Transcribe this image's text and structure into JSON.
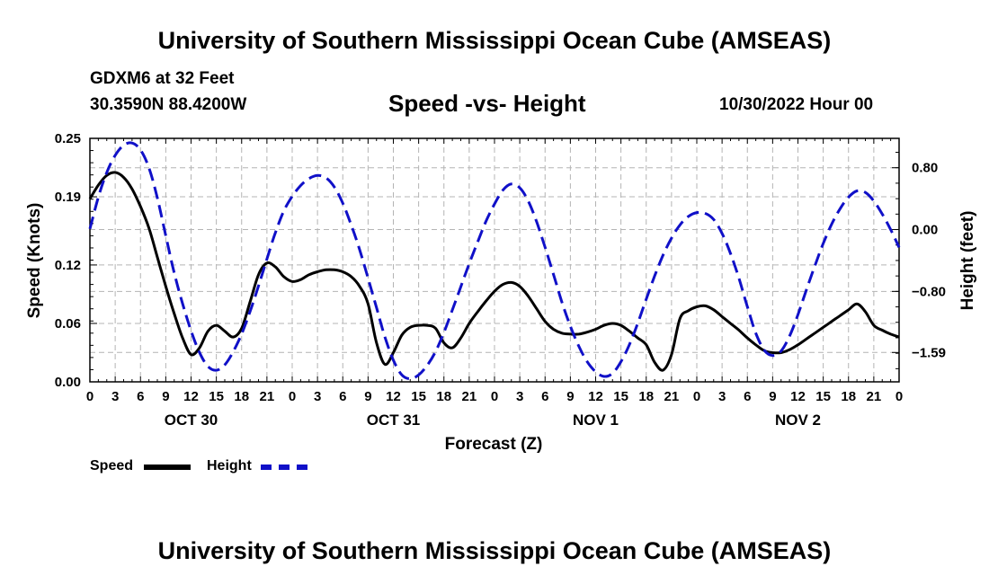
{
  "header": {
    "title_top": "University of Southern Mississippi Ocean Cube (AMSEAS)",
    "station": "GDXM6 at 32 Feet",
    "coords": "30.3590N  88.4200W",
    "chart_title": "Speed -vs- Height",
    "run_time": "10/30/2022 Hour 00"
  },
  "footer": {
    "title_bottom": "University of Southern Mississippi Ocean Cube (AMSEAS)"
  },
  "legend": {
    "speed_label": "Speed",
    "height_label": "Height"
  },
  "colors": {
    "speed": "#000000",
    "height": "#1010c8",
    "grid": "#b4b4b4"
  },
  "chart_data": {
    "type": "line",
    "title": "Speed -vs- Height",
    "xlabel": "Forecast (Z)",
    "ylabel": "Speed (Knots)",
    "y2label": "Height (feet)",
    "xlim": [
      0,
      96
    ],
    "ylim": [
      0,
      0.25
    ],
    "y2lim": [
      -1.97,
      1.18
    ],
    "x_ticks": [
      0,
      3,
      6,
      9,
      12,
      15,
      18,
      21,
      24,
      27,
      30,
      33,
      36,
      39,
      42,
      45,
      48,
      51,
      54,
      57,
      60,
      63,
      66,
      69,
      72,
      75,
      78,
      81,
      84,
      87,
      90,
      93,
      96
    ],
    "x_tick_labels": [
      "0",
      "3",
      "6",
      "9",
      "12",
      "15",
      "18",
      "21",
      "0",
      "3",
      "6",
      "9",
      "12",
      "15",
      "18",
      "21",
      "0",
      "3",
      "6",
      "9",
      "12",
      "15",
      "18",
      "21",
      "0",
      "3",
      "6",
      "9",
      "12",
      "15",
      "18",
      "21",
      "0"
    ],
    "day_labels": [
      {
        "x": 12,
        "label": "OCT 30"
      },
      {
        "x": 36,
        "label": "OCT 31"
      },
      {
        "x": 60,
        "label": "NOV 1"
      },
      {
        "x": 84,
        "label": "NOV 2"
      }
    ],
    "y_ticks": [
      0.0,
      0.06,
      0.12,
      0.19,
      0.25
    ],
    "y_tick_labels": [
      "0.00",
      "0.06",
      "0.12",
      "0.19",
      "0.25"
    ],
    "y2_ticks": [
      0.8,
      0.0,
      -0.8,
      -1.59
    ],
    "y2_tick_labels": [
      "0.80",
      "0.00",
      "−0.80",
      "−1.59"
    ],
    "grid": true,
    "series": [
      {
        "name": "Speed",
        "axis": "left",
        "style": "solid",
        "x": [
          0,
          1,
          2,
          3,
          4,
          5,
          6,
          7,
          8,
          9,
          10,
          11,
          12,
          13,
          14,
          15,
          16,
          17,
          18,
          19,
          20,
          21,
          22,
          23,
          24,
          25,
          26,
          27,
          28,
          29,
          30,
          31,
          32,
          33,
          34,
          35,
          36,
          37,
          38,
          39,
          40,
          41,
          42,
          43,
          44,
          45,
          46,
          47,
          48,
          49,
          50,
          51,
          52,
          53,
          54,
          55,
          56,
          57,
          58,
          59,
          60,
          61,
          62,
          63,
          64,
          65,
          66,
          67,
          68,
          69,
          70,
          71,
          72,
          73,
          74,
          75,
          76,
          77,
          78,
          79,
          80,
          81,
          82,
          83,
          84,
          85,
          86,
          87,
          88,
          89,
          90,
          91,
          92,
          93,
          94,
          95,
          96
        ],
        "values": [
          0.188,
          0.202,
          0.212,
          0.215,
          0.21,
          0.198,
          0.18,
          0.158,
          0.128,
          0.098,
          0.07,
          0.045,
          0.028,
          0.035,
          0.052,
          0.058,
          0.052,
          0.046,
          0.055,
          0.082,
          0.11,
          0.122,
          0.118,
          0.108,
          0.103,
          0.105,
          0.11,
          0.113,
          0.115,
          0.115,
          0.113,
          0.108,
          0.098,
          0.08,
          0.04,
          0.018,
          0.03,
          0.048,
          0.056,
          0.058,
          0.058,
          0.055,
          0.04,
          0.035,
          0.045,
          0.06,
          0.072,
          0.083,
          0.093,
          0.1,
          0.102,
          0.098,
          0.088,
          0.075,
          0.062,
          0.054,
          0.05,
          0.049,
          0.049,
          0.051,
          0.054,
          0.058,
          0.06,
          0.058,
          0.052,
          0.045,
          0.038,
          0.02,
          0.012,
          0.028,
          0.065,
          0.073,
          0.077,
          0.078,
          0.074,
          0.067,
          0.06,
          0.053,
          0.045,
          0.038,
          0.032,
          0.03,
          0.03,
          0.033,
          0.038,
          0.044,
          0.05,
          0.056,
          0.062,
          0.068,
          0.074,
          0.08,
          0.072,
          0.058,
          0.053,
          0.049,
          0.046
        ]
      },
      {
        "name": "Height",
        "axis": "right",
        "style": "dashed",
        "x": [
          0,
          1,
          2,
          3,
          4,
          5,
          6,
          7,
          8,
          9,
          10,
          11,
          12,
          13,
          14,
          15,
          16,
          17,
          18,
          19,
          20,
          21,
          22,
          23,
          24,
          25,
          26,
          27,
          28,
          29,
          30,
          31,
          32,
          33,
          34,
          35,
          36,
          37,
          38,
          39,
          40,
          41,
          42,
          43,
          44,
          45,
          46,
          47,
          48,
          49,
          50,
          51,
          52,
          53,
          54,
          55,
          56,
          57,
          58,
          59,
          60,
          61,
          62,
          63,
          64,
          65,
          66,
          67,
          68,
          69,
          70,
          71,
          72,
          73,
          74,
          75,
          76,
          77,
          78,
          79,
          80,
          81,
          82,
          83,
          84,
          85,
          86,
          87,
          88,
          89,
          90,
          91,
          92,
          93,
          94,
          95,
          96
        ],
        "values": [
          0.01,
          0.42,
          0.74,
          0.96,
          1.09,
          1.12,
          1.03,
          0.8,
          0.41,
          -0.08,
          -0.56,
          -0.96,
          -1.31,
          -1.59,
          -1.77,
          -1.82,
          -1.75,
          -1.58,
          -1.35,
          -1.06,
          -0.73,
          -0.38,
          -0.04,
          0.24,
          0.43,
          0.57,
          0.66,
          0.7,
          0.67,
          0.55,
          0.34,
          0.06,
          -0.26,
          -0.63,
          -1.01,
          -1.39,
          -1.69,
          -1.88,
          -1.93,
          -1.88,
          -1.76,
          -1.58,
          -1.33,
          -1.04,
          -0.74,
          -0.44,
          -0.16,
          0.11,
          0.33,
          0.51,
          0.59,
          0.54,
          0.37,
          0.1,
          -0.23,
          -0.58,
          -0.94,
          -1.25,
          -1.51,
          -1.71,
          -1.84,
          -1.9,
          -1.86,
          -1.71,
          -1.49,
          -1.21,
          -0.9,
          -0.6,
          -0.33,
          -0.11,
          0.06,
          0.17,
          0.22,
          0.21,
          0.13,
          -0.05,
          -0.31,
          -0.63,
          -1.0,
          -1.34,
          -1.56,
          -1.63,
          -1.57,
          -1.38,
          -1.1,
          -0.78,
          -0.47,
          -0.18,
          0.07,
          0.27,
          0.42,
          0.5,
          0.48,
          0.37,
          0.2,
          0.0,
          -0.23
        ]
      }
    ]
  }
}
